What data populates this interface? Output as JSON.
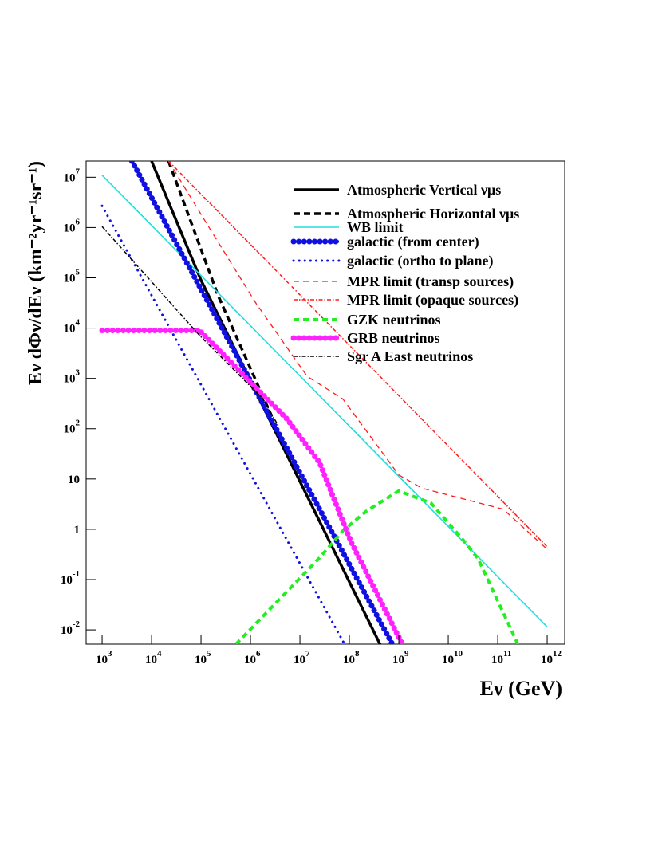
{
  "chart_data": {
    "type": "line",
    "x_label": "Eν (GeV)",
    "y_label": "Eν dΦν/dEν (km⁻²yr⁻¹sr⁻¹)",
    "xscale": "log",
    "yscale": "log",
    "xlim": [
      475,
      2260000000000.0
    ],
    "ylim": [
      0.0052,
      21000000.0
    ],
    "xticks": [
      {
        "value": 1000,
        "label": "10",
        "sup": "3"
      },
      {
        "value": 10000,
        "label": "10",
        "sup": "4"
      },
      {
        "value": 100000,
        "label": "10",
        "sup": "5"
      },
      {
        "value": 1000000,
        "label": "10",
        "sup": "6"
      },
      {
        "value": 10000000,
        "label": "10",
        "sup": "7"
      },
      {
        "value": 100000000,
        "label": "10",
        "sup": "8"
      },
      {
        "value": 1000000000,
        "label": "10",
        "sup": "9"
      },
      {
        "value": 10000000000,
        "label": "10",
        "sup": "10"
      },
      {
        "value": 100000000000,
        "label": "10",
        "sup": "11"
      },
      {
        "value": 1000000000000,
        "label": "10",
        "sup": "12"
      }
    ],
    "yticks": [
      {
        "value": 0.01,
        "label": "10",
        "sup": "-2"
      },
      {
        "value": 0.1,
        "label": "10",
        "sup": "-1"
      },
      1,
      10,
      {
        "value": 100,
        "label": "10",
        "sup": "2"
      },
      {
        "value": 1000,
        "label": "10",
        "sup": "3"
      },
      {
        "value": 10000,
        "label": "10",
        "sup": "4"
      },
      {
        "value": 100000,
        "label": "10",
        "sup": "5"
      },
      {
        "value": 1000000,
        "label": "10",
        "sup": "6"
      },
      {
        "value": 10000000,
        "label": "10",
        "sup": "7"
      }
    ],
    "series": [
      {
        "name": "Atmospheric Vertical νμs",
        "color": "#000000",
        "width": 3.5,
        "dash": "none",
        "x": [
          10000,
          100000,
          1000000,
          10000000,
          100000000,
          500000000
        ],
        "values": [
          21000000,
          90000,
          900,
          9,
          0.09,
          0.0036
        ]
      },
      {
        "name": "Atmospheric Horizontal νμs",
        "color": "#000000",
        "width": 3.5,
        "dash": "8 5",
        "x": [
          22000,
          220000,
          2600000,
          3000000
        ],
        "values": [
          21000000,
          45000,
          190,
          120
        ]
      },
      {
        "name": "WB limit",
        "color": "#22dddd",
        "width": 1.6,
        "dash": "none",
        "x": [
          1000,
          1000000000000
        ],
        "values": [
          11000000,
          0.0115
        ]
      },
      {
        "name": "galactic (from center)",
        "color": "#1010e0",
        "width": 3,
        "dash": "none",
        "markers": true,
        "x": [
          4000,
          740000000
        ],
        "values": [
          21000000,
          0.0052
        ]
      },
      {
        "name": "galactic (ortho to plane)",
        "color": "#1010e0",
        "width": 3,
        "dash": "0.1 7",
        "x": [
          1000,
          80000000
        ],
        "values": [
          2700000,
          0.0052
        ]
      },
      {
        "name": "MPR limit (transp sources)",
        "color": "#ff1a1a",
        "width": 1.3,
        "dash": "7 5",
        "x": [
          22000,
          130000,
          1300000,
          14000000,
          74000000,
          1000000000,
          3000000000,
          130000000000,
          1000000000000
        ],
        "values": [
          21000000,
          1200000,
          31000,
          1100,
          390,
          12,
          6.5,
          2.5,
          0.4
        ]
      },
      {
        "name": "MPR limit (opaque sources)",
        "color": "#ff1a1a",
        "width": 1.5,
        "dash": "5 2 1.5 2",
        "x": [
          22000,
          1000000000000
        ],
        "values": [
          21000000,
          0.45
        ]
      },
      {
        "name": "GZK neutrinos",
        "color": "#22ee22",
        "width": 4,
        "dash": "7 5",
        "x": [
          510000,
          24000000,
          74000000,
          220000000,
          1000000000,
          4500000000,
          19000000000,
          40000000000,
          260000000000
        ],
        "values": [
          0.0052,
          0.26,
          0.93,
          2.3,
          5.8,
          3.3,
          0.65,
          0.26,
          0.005
        ]
      },
      {
        "name": "GRB neutrinos",
        "color": "#ff22ff",
        "width": 3.5,
        "dash": "none",
        "markers": true,
        "x": [
          1000,
          93000,
          1800000,
          5500000,
          25000000,
          110000000,
          1200000000
        ],
        "values": [
          9000,
          9000,
          470,
          155,
          21,
          0.54,
          0.005
        ]
      },
      {
        "name": "Sgr A East neutrinos",
        "color": "#000000",
        "width": 1.5,
        "dash": "5 2 1.5 2",
        "x": [
          1000,
          93000,
          1800000,
          3800000
        ],
        "values": [
          1050000,
          7200,
          390,
          107
        ]
      }
    ]
  }
}
